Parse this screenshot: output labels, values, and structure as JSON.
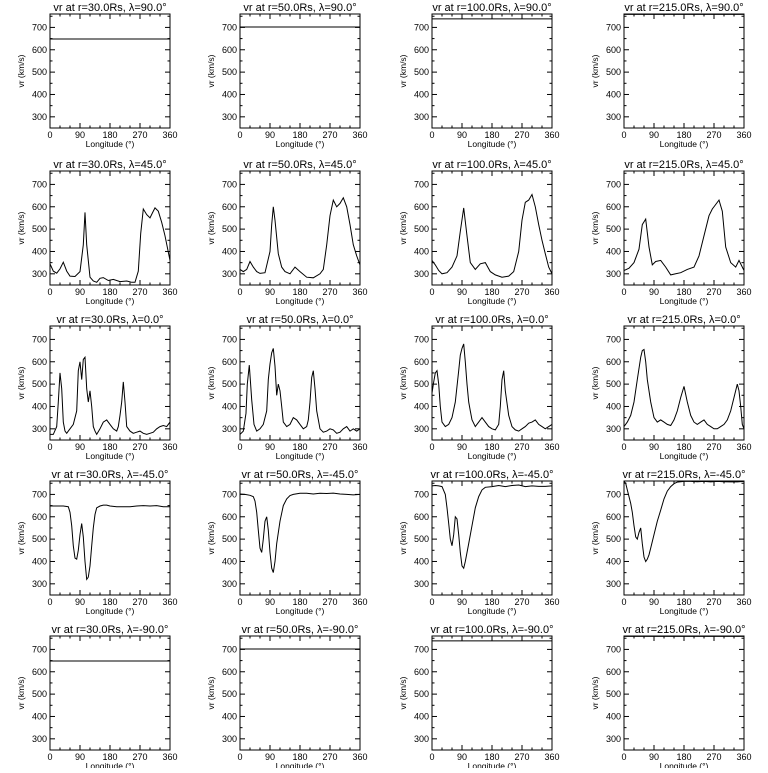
{
  "xlabel": "Longitude  (°)",
  "ylabel": "vr (km/s)",
  "xticks": [
    "0",
    "90",
    "180",
    "270",
    "360"
  ],
  "yticks": [
    "300",
    "400",
    "500",
    "600",
    "700"
  ],
  "chart_data": [
    {
      "type": "line",
      "title": "vr at r=30.0Rs,  λ=90.0°",
      "xlim": [
        0,
        360
      ],
      "ylim": [
        250,
        760
      ],
      "x": [
        0,
        360
      ],
      "series": [
        {
          "values": [
            648,
            648
          ]
        }
      ]
    },
    {
      "type": "line",
      "title": "vr at r=50.0Rs,  λ=90.0°",
      "xlim": [
        0,
        360
      ],
      "ylim": [
        250,
        760
      ],
      "x": [
        0,
        360
      ],
      "series": [
        {
          "values": [
            702,
            702
          ]
        }
      ]
    },
    {
      "type": "line",
      "title": "vr at r=100.0Rs,  λ=90.0°",
      "xlim": [
        0,
        360
      ],
      "ylim": [
        250,
        760
      ],
      "x": [
        0,
        360
      ],
      "series": [
        {
          "values": [
            738,
            738
          ]
        }
      ]
    },
    {
      "type": "line",
      "title": "vr at r=215.0Rs,  λ=90.0°",
      "xlim": [
        0,
        360
      ],
      "ylim": [
        250,
        760
      ],
      "x": [
        0,
        360
      ],
      "series": [
        {
          "values": [
            758,
            758
          ]
        }
      ]
    },
    {
      "type": "line",
      "title": "vr at r=30.0Rs,  λ=45.0°",
      "xlim": [
        0,
        360
      ],
      "ylim": [
        250,
        760
      ],
      "x": [
        0,
        10,
        20,
        30,
        40,
        50,
        60,
        75,
        90,
        100,
        105,
        110,
        120,
        130,
        140,
        150,
        160,
        175,
        190,
        210,
        230,
        245,
        255,
        265,
        272,
        280,
        290,
        300,
        308,
        315,
        325,
        335,
        345,
        360
      ],
      "series": [
        {
          "values": [
            345,
            312,
            303,
            322,
            352,
            312,
            290,
            288,
            310,
            430,
            575,
            430,
            285,
            268,
            262,
            280,
            283,
            270,
            275,
            265,
            268,
            262,
            262,
            312,
            480,
            590,
            565,
            550,
            575,
            595,
            580,
            530,
            470,
            360
          ]
        }
      ]
    },
    {
      "type": "line",
      "title": "vr at r=50.0Rs,  λ=45.0°",
      "xlim": [
        0,
        360
      ],
      "ylim": [
        250,
        760
      ],
      "x": [
        0,
        10,
        20,
        30,
        40,
        50,
        60,
        75,
        90,
        95,
        100,
        105,
        115,
        125,
        135,
        150,
        165,
        180,
        200,
        220,
        240,
        250,
        260,
        270,
        280,
        290,
        300,
        310,
        320,
        330,
        340,
        350,
        360
      ],
      "series": [
        {
          "values": [
            320,
            310,
            320,
            355,
            330,
            310,
            302,
            305,
            400,
            520,
            600,
            540,
            390,
            330,
            310,
            300,
            330,
            310,
            285,
            282,
            300,
            320,
            430,
            560,
            630,
            600,
            615,
            640,
            600,
            520,
            430,
            380,
            340
          ]
        }
      ]
    },
    {
      "type": "line",
      "title": "vr at r=100.0Rs,  λ=45.0°",
      "xlim": [
        0,
        360
      ],
      "ylim": [
        250,
        760
      ],
      "x": [
        0,
        10,
        20,
        30,
        45,
        60,
        75,
        85,
        95,
        105,
        115,
        130,
        145,
        160,
        175,
        190,
        210,
        230,
        245,
        260,
        270,
        280,
        290,
        300,
        310,
        320,
        330,
        340,
        350,
        360
      ],
      "series": [
        {
          "values": [
            360,
            340,
            315,
            300,
            305,
            330,
            380,
            490,
            595,
            470,
            350,
            320,
            345,
            350,
            310,
            295,
            285,
            290,
            310,
            400,
            540,
            620,
            630,
            655,
            600,
            520,
            450,
            390,
            330,
            300
          ]
        }
      ]
    },
    {
      "type": "line",
      "title": "vr at r=215.0Rs,  λ=45.0°",
      "xlim": [
        0,
        360
      ],
      "ylim": [
        250,
        760
      ],
      "x": [
        0,
        15,
        30,
        45,
        55,
        65,
        75,
        85,
        95,
        110,
        125,
        140,
        155,
        170,
        190,
        210,
        225,
        240,
        255,
        265,
        275,
        285,
        295,
        305,
        320,
        335,
        345,
        360
      ],
      "series": [
        {
          "values": [
            315,
            325,
            350,
            410,
            520,
            545,
            420,
            340,
            355,
            360,
            330,
            295,
            300,
            305,
            320,
            330,
            380,
            470,
            560,
            590,
            610,
            630,
            580,
            420,
            350,
            330,
            360,
            315
          ]
        }
      ]
    },
    {
      "type": "line",
      "title": "vr at r=30.0Rs,  λ=0.0°",
      "xlim": [
        0,
        360
      ],
      "ylim": [
        250,
        760
      ],
      "x": [
        0,
        10,
        20,
        25,
        30,
        35,
        40,
        45,
        50,
        55,
        60,
        70,
        80,
        85,
        90,
        95,
        100,
        105,
        110,
        115,
        120,
        125,
        130,
        135,
        140,
        150,
        160,
        170,
        180,
        190,
        200,
        205,
        210,
        215,
        220,
        225,
        230,
        240,
        250,
        260,
        270,
        280,
        290,
        300,
        310,
        320,
        330,
        340,
        350,
        360
      ],
      "series": [
        {
          "values": [
            275,
            275,
            310,
            420,
            550,
            480,
            330,
            290,
            280,
            290,
            300,
            320,
            380,
            560,
            600,
            520,
            610,
            620,
            480,
            420,
            470,
            400,
            310,
            290,
            275,
            300,
            330,
            340,
            320,
            300,
            290,
            310,
            360,
            420,
            510,
            420,
            310,
            290,
            280,
            285,
            290,
            280,
            275,
            280,
            285,
            300,
            310,
            315,
            310,
            330
          ]
        }
      ]
    },
    {
      "type": "line",
      "title": "vr at r=50.0Rs,  λ=0.0°",
      "xlim": [
        0,
        360
      ],
      "ylim": [
        250,
        760
      ],
      "x": [
        0,
        10,
        18,
        22,
        28,
        35,
        42,
        50,
        60,
        70,
        80,
        85,
        90,
        95,
        100,
        105,
        110,
        115,
        120,
        125,
        130,
        140,
        150,
        160,
        170,
        180,
        190,
        200,
        205,
        210,
        215,
        220,
        225,
        230,
        240,
        250,
        260,
        270,
        280,
        290,
        300,
        310,
        320,
        330,
        340,
        350,
        360
      ],
      "series": [
        {
          "values": [
            275,
            290,
            370,
            500,
            585,
            430,
            320,
            290,
            300,
            320,
            380,
            520,
            590,
            640,
            660,
            580,
            450,
            500,
            470,
            400,
            330,
            310,
            320,
            350,
            340,
            320,
            300,
            310,
            340,
            420,
            530,
            560,
            480,
            380,
            300,
            285,
            290,
            300,
            295,
            280,
            285,
            300,
            310,
            290,
            300,
            290,
            300
          ]
        }
      ]
    },
    {
      "type": "line",
      "title": "vr at r=100.0Rs,  λ=0.0°",
      "xlim": [
        0,
        360
      ],
      "ylim": [
        250,
        760
      ],
      "x": [
        0,
        5,
        10,
        15,
        20,
        25,
        30,
        40,
        50,
        60,
        70,
        80,
        85,
        90,
        95,
        100,
        105,
        110,
        115,
        120,
        130,
        140,
        150,
        160,
        170,
        180,
        190,
        200,
        205,
        210,
        215,
        220,
        230,
        240,
        250,
        260,
        270,
        280,
        290,
        300,
        310,
        320,
        330,
        340,
        350,
        360
      ],
      "series": [
        {
          "values": [
            460,
            510,
            550,
            560,
            500,
            400,
            330,
            310,
            320,
            350,
            420,
            560,
            630,
            660,
            680,
            600,
            500,
            420,
            380,
            340,
            310,
            330,
            350,
            330,
            310,
            300,
            295,
            320,
            400,
            520,
            560,
            470,
            360,
            310,
            295,
            290,
            300,
            310,
            325,
            330,
            340,
            320,
            310,
            300,
            310,
            320
          ]
        }
      ]
    },
    {
      "type": "line",
      "title": "vr at r=215.0Rs,  λ=0.0°",
      "xlim": [
        0,
        360
      ],
      "ylim": [
        250,
        760
      ],
      "x": [
        0,
        10,
        20,
        30,
        40,
        50,
        55,
        60,
        65,
        70,
        80,
        90,
        100,
        110,
        120,
        130,
        140,
        150,
        160,
        170,
        180,
        190,
        200,
        210,
        220,
        230,
        240,
        250,
        260,
        270,
        280,
        290,
        300,
        310,
        320,
        330,
        340,
        345,
        350,
        355,
        360
      ],
      "series": [
        {
          "values": [
            310,
            330,
            360,
            420,
            520,
            620,
            650,
            655,
            600,
            520,
            420,
            350,
            330,
            340,
            330,
            320,
            315,
            340,
            380,
            440,
            490,
            420,
            360,
            330,
            320,
            330,
            340,
            320,
            310,
            300,
            300,
            310,
            320,
            340,
            380,
            440,
            500,
            470,
            400,
            320,
            300
          ]
        }
      ]
    },
    {
      "type": "line",
      "title": "vr at r=30.0Rs,  λ=-45.0°",
      "xlim": [
        0,
        360
      ],
      "ylim": [
        250,
        760
      ],
      "x": [
        0,
        20,
        40,
        55,
        60,
        65,
        70,
        75,
        80,
        85,
        90,
        95,
        100,
        105,
        110,
        115,
        120,
        125,
        130,
        135,
        140,
        150,
        160,
        170,
        180,
        200,
        220,
        240,
        260,
        280,
        300,
        320,
        340,
        360
      ],
      "series": [
        {
          "values": [
            648,
            648,
            648,
            645,
            620,
            560,
            470,
            415,
            410,
            450,
            520,
            570,
            510,
            400,
            320,
            330,
            380,
            470,
            550,
            610,
            640,
            648,
            652,
            652,
            648,
            645,
            645,
            645,
            648,
            650,
            648,
            650,
            645,
            645
          ]
        }
      ]
    },
    {
      "type": "line",
      "title": "vr at r=50.0Rs,  λ=-45.0°",
      "xlim": [
        0,
        360
      ],
      "ylim": [
        250,
        760
      ],
      "x": [
        0,
        15,
        30,
        40,
        45,
        50,
        55,
        60,
        65,
        70,
        75,
        80,
        85,
        90,
        95,
        100,
        105,
        110,
        120,
        130,
        140,
        150,
        160,
        180,
        200,
        220,
        240,
        260,
        280,
        300,
        320,
        340,
        360
      ],
      "series": [
        {
          "values": [
            702,
            700,
            696,
            690,
            670,
            620,
            540,
            460,
            440,
            500,
            580,
            600,
            540,
            440,
            370,
            350,
            400,
            480,
            580,
            650,
            680,
            695,
            700,
            705,
            705,
            702,
            705,
            704,
            706,
            702,
            700,
            698,
            700
          ]
        }
      ]
    },
    {
      "type": "line",
      "title": "vr at r=100.0Rs,  λ=-45.0°",
      "xlim": [
        0,
        360
      ],
      "ylim": [
        250,
        760
      ],
      "x": [
        0,
        10,
        20,
        30,
        40,
        45,
        50,
        55,
        60,
        65,
        70,
        75,
        80,
        85,
        90,
        95,
        100,
        110,
        120,
        130,
        140,
        150,
        160,
        180,
        200,
        220,
        240,
        260,
        280,
        300,
        320,
        340,
        360
      ],
      "series": [
        {
          "values": [
            738,
            740,
            738,
            735,
            700,
            640,
            570,
            500,
            470,
            520,
            600,
            590,
            520,
            440,
            380,
            370,
            400,
            480,
            560,
            640,
            690,
            720,
            732,
            735,
            740,
            735,
            740,
            742,
            735,
            738,
            736,
            736,
            738
          ]
        }
      ]
    },
    {
      "type": "line",
      "title": "vr at r=215.0Rs,  λ=-45.0°",
      "xlim": [
        0,
        360
      ],
      "ylim": [
        250,
        760
      ],
      "x": [
        0,
        5,
        10,
        15,
        20,
        25,
        30,
        35,
        40,
        45,
        50,
        55,
        60,
        65,
        70,
        75,
        80,
        90,
        100,
        110,
        120,
        130,
        140,
        150,
        160,
        180,
        200,
        220,
        240,
        260,
        280,
        300,
        320,
        340,
        360
      ],
      "series": [
        {
          "values": [
            758,
            750,
            720,
            690,
            660,
            620,
            560,
            510,
            500,
            530,
            550,
            480,
            420,
            400,
            410,
            430,
            460,
            520,
            580,
            630,
            680,
            715,
            735,
            748,
            755,
            758,
            758,
            757,
            758,
            756,
            758,
            757,
            756,
            756,
            758
          ]
        }
      ]
    },
    {
      "type": "line",
      "title": "vr at r=30.0Rs,  λ=-90.0°",
      "xlim": [
        0,
        360
      ],
      "ylim": [
        250,
        760
      ],
      "x": [
        0,
        360
      ],
      "series": [
        {
          "values": [
            648,
            648
          ]
        }
      ]
    },
    {
      "type": "line",
      "title": "vr at r=50.0Rs,  λ=-90.0°",
      "xlim": [
        0,
        360
      ],
      "ylim": [
        250,
        760
      ],
      "x": [
        0,
        360
      ],
      "series": [
        {
          "values": [
            702,
            702
          ]
        }
      ]
    },
    {
      "type": "line",
      "title": "vr at r=100.0Rs,  λ=-90.0°",
      "xlim": [
        0,
        360
      ],
      "ylim": [
        250,
        760
      ],
      "x": [
        0,
        360
      ],
      "series": [
        {
          "values": [
            738,
            738
          ]
        }
      ]
    },
    {
      "type": "line",
      "title": "vr at r=215.0Rs,  λ=-90.0°",
      "xlim": [
        0,
        360
      ],
      "ylim": [
        250,
        760
      ],
      "x": [
        0,
        360
      ],
      "series": [
        {
          "values": [
            758,
            758
          ]
        }
      ]
    }
  ]
}
